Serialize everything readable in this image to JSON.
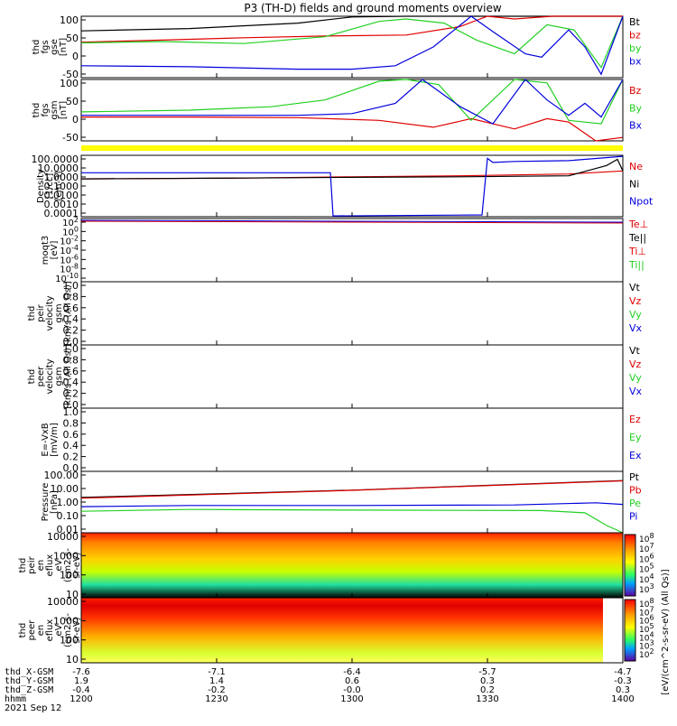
{
  "title": "P3 (TH-D) fields and ground moments overview",
  "colors": {
    "black": "#000000",
    "red": "#e00000",
    "green": "#22d022",
    "blue": "#0000dd",
    "yellow": "#ffff00",
    "dark_red": "#b00000"
  },
  "chart_data": [
    {
      "id": "panel1",
      "type": "line",
      "ylabel": [
        "thd",
        "fgs",
        "gse",
        "[nT]"
      ],
      "ylim": [
        -80,
        100
      ],
      "yticks": [
        "100",
        "50",
        "0",
        "-50"
      ],
      "legend": [
        {
          "label": "Bt",
          "color": "black"
        },
        {
          "label": "bz",
          "color": "red"
        },
        {
          "label": "by",
          "color": "green"
        },
        {
          "label": "bx",
          "color": "blue"
        }
      ],
      "series": [
        {
          "name": "Bt",
          "color": "black",
          "x": [
            0,
            0.2,
            0.4,
            0.5,
            0.6,
            0.8,
            1.0
          ],
          "y": [
            57,
            64,
            80,
            98,
            100,
            100,
            100
          ]
        },
        {
          "name": "bz",
          "color": "red",
          "x": [
            0,
            0.15,
            0.3,
            0.45,
            0.6,
            0.7,
            0.75,
            0.8,
            0.87,
            0.9,
            0.95,
            1.0
          ],
          "y": [
            24,
            30,
            37,
            42,
            45,
            70,
            100,
            92,
            100,
            100,
            100,
            100
          ]
        },
        {
          "name": "by",
          "color": "green",
          "x": [
            0,
            0.15,
            0.3,
            0.45,
            0.55,
            0.6,
            0.67,
            0.73,
            0.8,
            0.86,
            0.91,
            0.96,
            1.0
          ],
          "y": [
            22,
            26,
            20,
            40,
            85,
            92,
            80,
            30,
            -10,
            75,
            60,
            -50,
            100
          ]
        },
        {
          "name": "bx",
          "color": "blue",
          "x": [
            0,
            0.2,
            0.4,
            0.5,
            0.58,
            0.65,
            0.72,
            0.76,
            0.82,
            0.85,
            0.9,
            0.93,
            0.96,
            1.0
          ],
          "y": [
            -45,
            -48,
            -55,
            -55,
            -45,
            10,
            100,
            55,
            -10,
            -20,
            60,
            10,
            -70,
            100
          ]
        }
      ]
    },
    {
      "id": "panel2",
      "type": "line",
      "ylabel": [
        "thd",
        "fgs",
        "gsm",
        "[nT]"
      ],
      "ylim": [
        -80,
        100
      ],
      "yticks": [
        "100",
        "50",
        "0",
        "-50"
      ],
      "legend": [
        {
          "label": "Bz",
          "color": "red"
        },
        {
          "label": "By",
          "color": "green"
        },
        {
          "label": "Bx",
          "color": "blue"
        }
      ],
      "series": [
        {
          "name": "Bz",
          "color": "red",
          "x": [
            0,
            0.2,
            0.4,
            0.55,
            0.65,
            0.72,
            0.8,
            0.86,
            0.9,
            0.95,
            1.0
          ],
          "y": [
            -10,
            -10,
            -12,
            -20,
            -40,
            -15,
            -45,
            -15,
            -25,
            -80,
            -70
          ]
        },
        {
          "name": "By",
          "color": "green",
          "x": [
            0,
            0.2,
            0.35,
            0.45,
            0.55,
            0.6,
            0.66,
            0.72,
            0.8,
            0.86,
            0.9,
            0.96,
            1.0
          ],
          "y": [
            5,
            10,
            20,
            40,
            95,
            100,
            85,
            -20,
            100,
            90,
            -20,
            -30,
            100
          ]
        },
        {
          "name": "Bx",
          "color": "blue",
          "x": [
            0,
            0.2,
            0.4,
            0.5,
            0.58,
            0.63,
            0.7,
            0.76,
            0.82,
            0.86,
            0.9,
            0.93,
            0.96,
            1.0
          ],
          "y": [
            -5,
            -5,
            -5,
            0,
            30,
            100,
            20,
            -30,
            100,
            40,
            -5,
            30,
            -10,
            100
          ]
        }
      ]
    },
    {
      "id": "panel3",
      "type": "line",
      "scale": "log",
      "ylabel": [
        "Density",
        "[1/cc]",
        "[cm-3]"
      ],
      "ylim": [
        0.0001,
        100
      ],
      "yticks": [
        "100.0000",
        "10.0000",
        "1.0000",
        "0.1000",
        "0.0100",
        "0.0010",
        "0.0001"
      ],
      "legend": [
        {
          "label": "Ne",
          "color": "red"
        },
        {
          "label": "Ni",
          "color": "black"
        },
        {
          "label": "Npot",
          "color": "blue"
        }
      ],
      "series": [
        {
          "name": "Ne",
          "color": "red",
          "x": [
            0,
            0.3,
            0.5,
            0.7,
            0.9,
            1.0
          ],
          "y": [
            0.5,
            0.6,
            0.8,
            1.0,
            1.5,
            3
          ]
        },
        {
          "name": "Ni",
          "color": "black",
          "x": [
            0,
            0.3,
            0.5,
            0.7,
            0.9,
            0.97,
            0.99,
            1.0
          ],
          "y": [
            0.5,
            0.6,
            0.7,
            0.8,
            1.0,
            10,
            40,
            3
          ]
        },
        {
          "name": "Npot",
          "color": "blue",
          "x": [
            0,
            0.3,
            0.46,
            0.465,
            0.47,
            0.74,
            0.75,
            0.76,
            0.8,
            0.9,
            1.0
          ],
          "y": [
            2,
            2,
            2,
            0.00012,
            0.00012,
            0.00015,
            50,
            20,
            25,
            30,
            80
          ]
        }
      ]
    },
    {
      "id": "panel4",
      "type": "line",
      "scale": "log",
      "ylabel": [
        "moqt3",
        "[eV]"
      ],
      "yticks": [
        "10^2",
        "10^0",
        "10^-2",
        "10^-4",
        "10^-6",
        "10^-8",
        "10^-10"
      ],
      "legend": [
        {
          "label": "Te⊥",
          "color": "red"
        },
        {
          "label": "Te||",
          "color": "black"
        },
        {
          "label": "Ti⊥",
          "color": "red"
        },
        {
          "label": "Ti||",
          "color": "green"
        }
      ]
    },
    {
      "id": "panel5",
      "type": "line",
      "ylabel": [
        "thd",
        "peir",
        "velocity",
        "gsm",
        "[km/s (All Qs)]"
      ],
      "ylim": [
        0,
        1
      ],
      "yticks": [
        "1.0",
        "0.8",
        "0.6",
        "0.4",
        "0.2",
        "0.0"
      ],
      "legend": [
        {
          "label": "Vt",
          "color": "black"
        },
        {
          "label": "Vz",
          "color": "red"
        },
        {
          "label": "Vy",
          "color": "green"
        },
        {
          "label": "Vx",
          "color": "blue"
        }
      ]
    },
    {
      "id": "panel6",
      "type": "line",
      "ylabel": [
        "thd",
        "peer",
        "velocity",
        "gsm",
        "[km/s (All Qs)]"
      ],
      "ylim": [
        0,
        1
      ],
      "yticks": [
        "1.0",
        "0.8",
        "0.6",
        "0.4",
        "0.2",
        "0.0"
      ],
      "legend": [
        {
          "label": "Vt",
          "color": "black"
        },
        {
          "label": "Vz",
          "color": "red"
        },
        {
          "label": "Vy",
          "color": "green"
        },
        {
          "label": "Vx",
          "color": "blue"
        }
      ]
    },
    {
      "id": "panel7",
      "type": "line",
      "ylabel": [
        "E=-VxB",
        "[mV/m]"
      ],
      "ylim": [
        0,
        1
      ],
      "yticks": [
        "1.0",
        "0.8",
        "0.6",
        "0.4",
        "0.2",
        "0.0"
      ],
      "legend": [
        {
          "label": "Ez",
          "color": "red"
        },
        {
          "label": "Ey",
          "color": "green"
        },
        {
          "label": "Ex",
          "color": "blue"
        }
      ]
    },
    {
      "id": "panel8",
      "type": "line",
      "scale": "log",
      "ylabel": [
        "Pressure",
        "[nPa]"
      ],
      "ylim": [
        0.01,
        100
      ],
      "yticks": [
        "100.00",
        "10.00",
        "1.00",
        "0.10",
        "0.01"
      ],
      "legend": [
        {
          "label": "Pt",
          "color": "black"
        },
        {
          "label": "Pb",
          "color": "red"
        },
        {
          "label": "Pe",
          "color": "green"
        },
        {
          "label": "Pi",
          "color": "blue"
        }
      ],
      "series": [
        {
          "name": "Pt",
          "color": "black",
          "x": [
            0,
            0.5,
            1.0
          ],
          "y": [
            2,
            6,
            25
          ]
        },
        {
          "name": "Pb",
          "color": "red",
          "x": [
            0,
            0.5,
            1.0
          ],
          "y": [
            1.8,
            5.8,
            24
          ]
        },
        {
          "name": "Pe",
          "color": "green",
          "x": [
            0,
            0.2,
            0.5,
            0.85,
            0.93,
            0.97,
            1.0
          ],
          "y": [
            0.25,
            0.33,
            0.3,
            0.28,
            0.2,
            0.03,
            0.01
          ]
        },
        {
          "name": "Pi",
          "color": "blue",
          "x": [
            0,
            0.2,
            0.5,
            0.8,
            0.95,
            1.0
          ],
          "y": [
            0.5,
            0.6,
            0.6,
            0.65,
            0.9,
            0.7
          ]
        }
      ]
    },
    {
      "id": "panel9",
      "type": "heatmap",
      "ylabel": [
        "thd",
        "peir",
        "en",
        "eflux",
        "eV",
        "(cm2-s-",
        "sr-eV)"
      ],
      "yticks": [
        "10000",
        "1000",
        "100",
        "10"
      ],
      "colorbar_ticks": [
        "10^8",
        "10^7",
        "10^6",
        "10^5",
        "10^4",
        "10^3"
      ]
    },
    {
      "id": "panel10",
      "type": "heatmap",
      "ylabel": [
        "thd",
        "peer",
        "en",
        "eflux",
        "eV",
        "(cm2-s-",
        "sr-eV)"
      ],
      "yticks": [
        "10000",
        "1000",
        "100",
        "10"
      ],
      "colorbar_ticks": [
        "10^8",
        "10^7",
        "10^6",
        "10^5",
        "10^4",
        "10^3",
        "10^2"
      ]
    }
  ],
  "colorbar_label": "[eV/(cm^2-s-sr-eV) (All Qs)]",
  "xaxis": {
    "rows": [
      {
        "label": "thd_X-GSM",
        "values": [
          "-7.6",
          "-7.1",
          "-6.4",
          "-5.7",
          "-4.7"
        ]
      },
      {
        "label": "thd_Y-GSM",
        "values": [
          "1.9",
          "1.4",
          "0.6",
          "0.3",
          "-0.3"
        ]
      },
      {
        "label": "thd_Z-GSM",
        "values": [
          "-0.4",
          "-0.2",
          "-0.0",
          "0.2",
          "0.3"
        ]
      },
      {
        "label": "hhmm",
        "values": [
          "1200",
          "1230",
          "1300",
          "1330",
          "1400"
        ]
      }
    ],
    "date": "2021 Sep 12"
  }
}
